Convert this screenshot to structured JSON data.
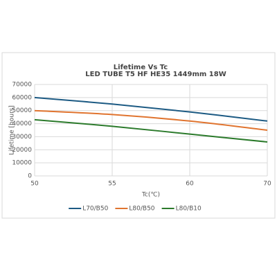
{
  "chart_data": {
    "type": "line",
    "title": "Lifetime Vs Tc",
    "subtitle": "LED TUBE T5 HF HE35 1449mm 18W",
    "x_label": "Tc(℃)",
    "y_label": "Lifetime [hours]",
    "categories": [
      "50",
      "55",
      "60",
      "70"
    ],
    "series": [
      {
        "name": "L70/B50",
        "color": "#1c5a83",
        "values": [
          60000,
          55000,
          49000,
          42000
        ]
      },
      {
        "name": "L80/B50",
        "color": "#e0742f",
        "values": [
          50000,
          47000,
          42000,
          35000
        ]
      },
      {
        "name": "L80/B10",
        "color": "#2b7a2b",
        "values": [
          43000,
          38000,
          32000,
          26000
        ]
      }
    ],
    "ylim": [
      0,
      70000
    ],
    "yticks": [
      0,
      10000,
      20000,
      30000,
      40000,
      50000,
      60000,
      70000
    ],
    "grid": true,
    "legend": "bottom"
  }
}
